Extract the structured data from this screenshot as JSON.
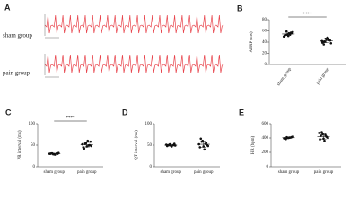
{
  "panel_a": {
    "panel": "A",
    "rows": [
      "sham group",
      "pain group"
    ]
  },
  "chart_data": [
    {
      "type": "dot",
      "panel": "B",
      "ylabel": "AERP (ms)",
      "categories": [
        "sham group",
        "pain group"
      ],
      "groups": [
        {
          "values": [
            52,
            57,
            54,
            58,
            50,
            55,
            53,
            56,
            51,
            59,
            54
          ],
          "mean": 54.5,
          "sd": 2.8
        },
        {
          "values": [
            40,
            44,
            46,
            38,
            42,
            48,
            36,
            43,
            45,
            41,
            47,
            39
          ],
          "mean": 42.5,
          "sd": 3.6
        }
      ],
      "ylim": [
        0,
        80
      ],
      "yticks": [
        0,
        20,
        40,
        60,
        80
      ],
      "significance": "****"
    },
    {
      "type": "dot",
      "panel": "C",
      "ylabel": "PR interval (ms)",
      "categories": [
        "sham group",
        "pain group"
      ],
      "groups": [
        {
          "values": [
            30,
            31,
            29,
            32,
            30,
            28,
            31,
            30,
            29,
            31
          ],
          "mean": 30,
          "sd": 1.2
        },
        {
          "values": [
            45,
            50,
            55,
            48,
            52,
            60,
            42,
            58,
            47,
            53,
            49
          ],
          "mean": 51,
          "sd": 5.3
        }
      ],
      "ylim": [
        0,
        100
      ],
      "yticks": [
        0,
        50,
        100
      ],
      "significance": "****"
    },
    {
      "type": "dot",
      "panel": "D",
      "ylabel": "QT interval (ms)",
      "categories": [
        "sham group",
        "pain group"
      ],
      "groups": [
        {
          "values": [
            48,
            50,
            52,
            49,
            51,
            47,
            50,
            53,
            49,
            50
          ],
          "mean": 50,
          "sd": 1.8
        },
        {
          "values": [
            45,
            55,
            60,
            48,
            52,
            40,
            65,
            50,
            47,
            58,
            53
          ],
          "mean": 52,
          "sd": 7
        }
      ],
      "ylim": [
        0,
        100
      ],
      "yticks": [
        0,
        50,
        100
      ]
    },
    {
      "type": "dot",
      "panel": "E",
      "ylabel": "HR (bpm)",
      "categories": [
        "sham group",
        "pain group"
      ],
      "groups": [
        {
          "values": [
            390,
            410,
            400,
            420,
            395,
            405,
            385,
            415,
            400,
            410
          ],
          "mean": 403,
          "sd": 11
        },
        {
          "values": [
            380,
            420,
            450,
            400,
            470,
            360,
            430,
            410,
            390,
            480,
            440
          ],
          "mean": 421,
          "sd": 36
        }
      ],
      "ylim": [
        0,
        600
      ],
      "yticks": [
        0,
        200,
        400,
        600
      ]
    }
  ]
}
